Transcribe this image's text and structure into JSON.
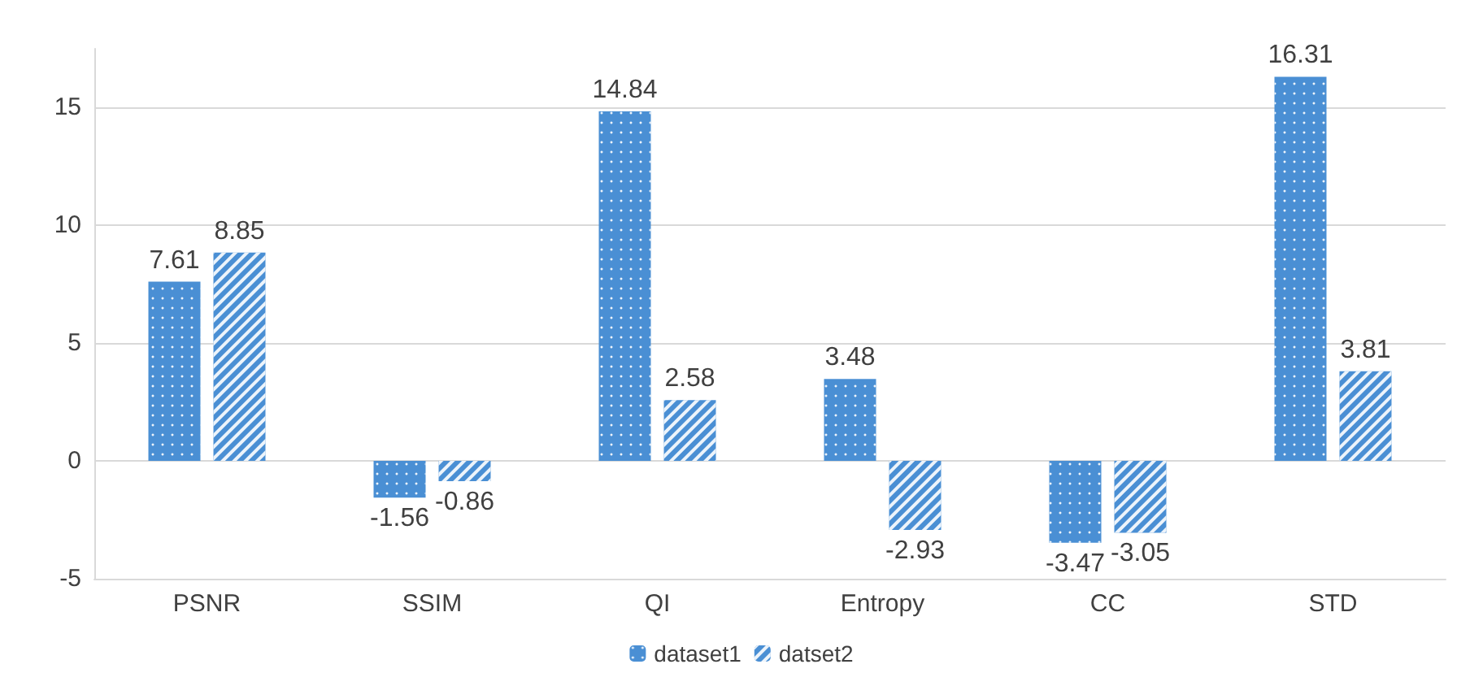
{
  "chart_data": {
    "type": "bar",
    "categories": [
      "PSNR",
      "SSIM",
      "QI",
      "Entropy",
      "CC",
      "STD"
    ],
    "series": [
      {
        "name": "dataset1",
        "color": "#4a8fd4",
        "values": [
          7.61,
          -1.56,
          14.84,
          3.48,
          -3.47,
          16.31
        ]
      },
      {
        "name": "datset2",
        "color": "#4a8fd4",
        "values": [
          8.85,
          -0.86,
          2.58,
          -2.93,
          -3.05,
          3.81
        ]
      }
    ],
    "ylim": [
      -5,
      17.5
    ],
    "yticks": [
      -5,
      0,
      5,
      10,
      15
    ],
    "grid": "y",
    "legend": "bottom",
    "data_labels": true
  }
}
